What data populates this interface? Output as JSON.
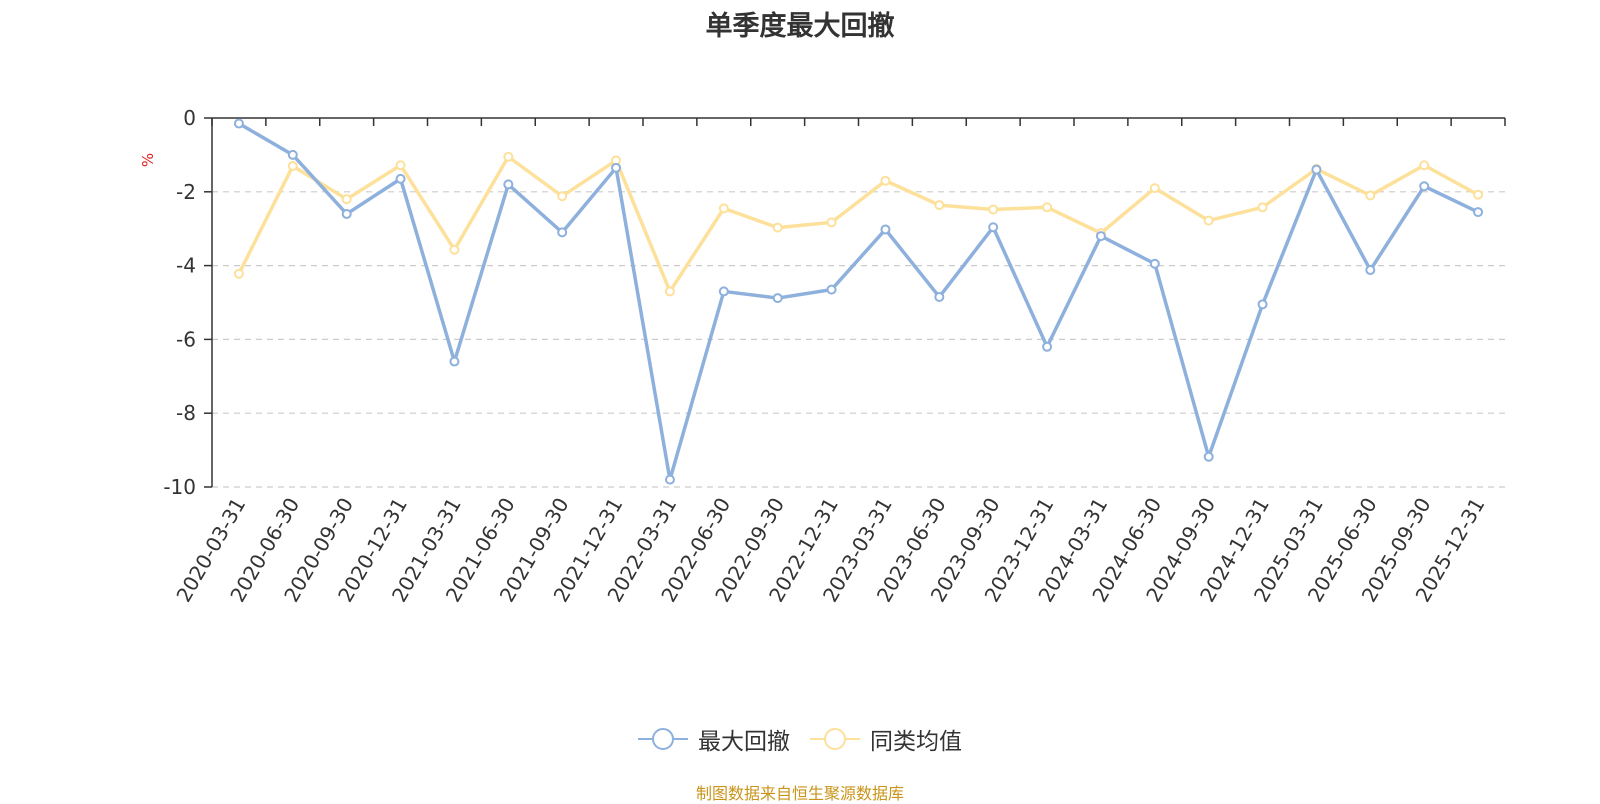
{
  "chart_data": {
    "type": "line",
    "title": "单季度最大回撤",
    "ylabel": "%",
    "ylim": [
      -10,
      0
    ],
    "yticks": [
      0,
      -2,
      -4,
      -6,
      -8,
      -10
    ],
    "grid": true,
    "legend_position": "bottom",
    "categories": [
      "2020-03-31",
      "2020-06-30",
      "2020-09-30",
      "2020-12-31",
      "2021-03-31",
      "2021-06-30",
      "2021-09-30",
      "2021-12-31",
      "2022-03-31",
      "2022-06-30",
      "2022-09-30",
      "2022-12-31",
      "2023-03-31",
      "2023-06-30",
      "2023-09-30",
      "2023-12-31",
      "2024-03-31",
      "2024-06-30",
      "2024-09-30",
      "2024-12-31",
      "2025-03-31",
      "2025-06-30",
      "2025-09-30",
      "2025-12-31"
    ],
    "series": [
      {
        "name": "最大回撤",
        "color": "#8eb0dc",
        "values": [
          -0.15,
          -1.0,
          -2.6,
          -1.65,
          -6.6,
          -1.8,
          -3.1,
          -1.35,
          -9.8,
          -4.7,
          -4.88,
          -4.65,
          -3.02,
          -4.85,
          -2.96,
          -6.2,
          -3.2,
          -3.95,
          -9.18,
          -5.05,
          -1.4,
          -4.12,
          -1.85,
          -2.55
        ]
      },
      {
        "name": "同类均值",
        "color": "#fde09a",
        "values": [
          -4.22,
          -1.3,
          -2.2,
          -1.28,
          -3.57,
          -1.05,
          -2.12,
          -1.15,
          -4.7,
          -2.45,
          -2.97,
          -2.83,
          -1.7,
          -2.36,
          -2.48,
          -2.42,
          -3.12,
          -1.9,
          -2.78,
          -2.42,
          -1.38,
          -2.1,
          -1.28,
          -2.08
        ]
      }
    ]
  },
  "source_note": "制图数据来自恒生聚源数据库"
}
